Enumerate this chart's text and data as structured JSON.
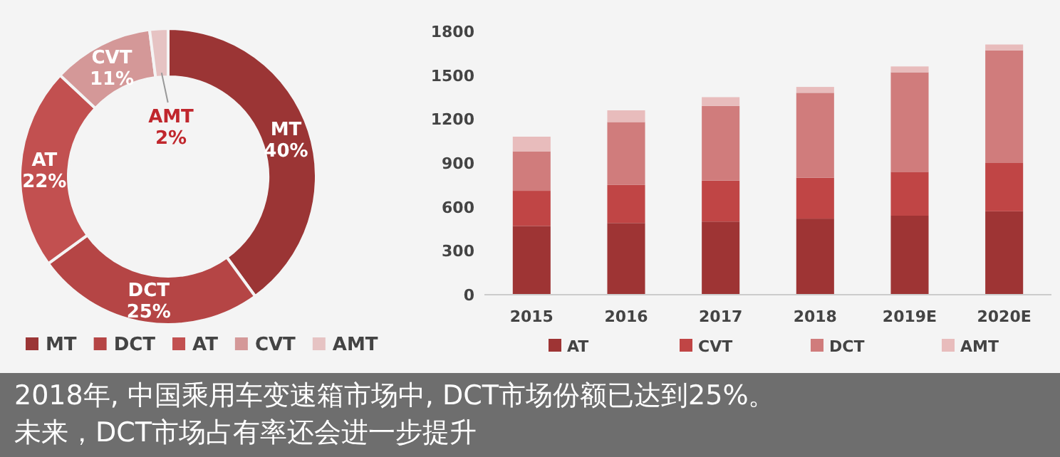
{
  "chart_data": [
    {
      "type": "donut",
      "categories": [
        "MT",
        "DCT",
        "AT",
        "CVT",
        "AMT"
      ],
      "values": [
        40,
        25,
        22,
        11,
        2
      ],
      "colors": [
        "#9b3535",
        "#b54545",
        "#c25050",
        "#d49898",
        "#e6c3c3"
      ],
      "value_labels": [
        "40%",
        "25%",
        "22%",
        "11%",
        "2%"
      ],
      "legend": "bottom",
      "annotations": [
        "2018年, 中国乘用车变速箱市场中, DCT市场份额已达到25%。",
        "未来，DCT市场占有率还会进一步提升"
      ]
    },
    {
      "type": "bar",
      "stacked": true,
      "categories": [
        "2015",
        "2016",
        "2017",
        "2018",
        "2019E",
        "2020E"
      ],
      "ylim": [
        0,
        1800
      ],
      "yticks": [
        0,
        300,
        600,
        900,
        1200,
        1500,
        1800
      ],
      "legend": "bottom",
      "series": [
        {
          "name": "AT",
          "color": "#9e3434",
          "values": [
            470,
            490,
            500,
            520,
            540,
            570
          ]
        },
        {
          "name": "CVT",
          "color": "#c04545",
          "values": [
            240,
            260,
            280,
            280,
            300,
            330
          ]
        },
        {
          "name": "DCT",
          "color": "#d07c7c",
          "values": [
            270,
            430,
            510,
            580,
            680,
            770
          ]
        },
        {
          "name": "AMT",
          "color": "#e8bcbc",
          "values": [
            100,
            80,
            60,
            40,
            40,
            40
          ]
        }
      ]
    }
  ]
}
